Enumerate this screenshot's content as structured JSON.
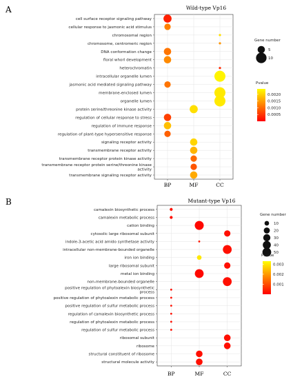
{
  "chart_data": [
    {
      "type": "scatter",
      "panel_label": "A",
      "title": "Wild-type Vp16",
      "x_categories": [
        "BP",
        "MF",
        "CC"
      ],
      "y_categories": [
        "cell surface receptor signaling pathway",
        "cellular response to jasmonic acid stimulus",
        "chromosomal region",
        "chromosome, centromeric region",
        "DNA conformation change",
        "floral whorl development",
        "heterochromatin",
        "intracellular organelle lumen",
        "jasmonic acid mediated signaling pathway",
        "membrane-enclosed lumen",
        "organelle lumen",
        "protein serine/threonine kinase activity",
        "regulation of cellular response to stress",
        "regulation of immune response",
        "regulation of plant-type hypersensitive response",
        "signaling receptor activity",
        "transmembrane receptor activity",
        "transmembrane receptor protein kinase activity",
        "transmembrane receptor protein serine/threonine kinase activity",
        "transmembrane signaling receptor activity"
      ],
      "points": [
        {
          "term": "cell surface receptor signaling pathway",
          "category": "BP",
          "gene_number": 6,
          "pvalue": 0.0003
        },
        {
          "term": "cellular response to jasmonic acid stimulus",
          "category": "BP",
          "gene_number": 4,
          "pvalue": 0.0012
        },
        {
          "term": "chromosomal region",
          "category": "CC",
          "gene_number": 2,
          "pvalue": 0.0021
        },
        {
          "term": "chromosome, centromeric region",
          "category": "CC",
          "gene_number": 2,
          "pvalue": 0.0014
        },
        {
          "term": "DNA conformation change",
          "category": "BP",
          "gene_number": 5,
          "pvalue": 0.0011
        },
        {
          "term": "floral whorl development",
          "category": "BP",
          "gene_number": 5,
          "pvalue": 0.0013
        },
        {
          "term": "heterochromatin",
          "category": "CC",
          "gene_number": 2,
          "pvalue": 0.0004
        },
        {
          "term": "intracellular organelle lumen",
          "category": "CC",
          "gene_number": 11,
          "pvalue": 0.0023
        },
        {
          "term": "jasmonic acid mediated signaling pathway",
          "category": "BP",
          "gene_number": 4,
          "pvalue": 0.0011
        },
        {
          "term": "membrane-enclosed lumen",
          "category": "CC",
          "gene_number": 11,
          "pvalue": 0.0022
        },
        {
          "term": "organelle lumen",
          "category": "CC",
          "gene_number": 11,
          "pvalue": 0.0022
        },
        {
          "term": "protein serine/threonine kinase activity",
          "category": "MF",
          "gene_number": 6,
          "pvalue": 0.0021
        },
        {
          "term": "regulation of cellular response to stress",
          "category": "BP",
          "gene_number": 5,
          "pvalue": 0.0006
        },
        {
          "term": "regulation of immune response",
          "category": "BP",
          "gene_number": 5,
          "pvalue": 0.0018
        },
        {
          "term": "regulation of plant-type hypersensitive response",
          "category": "BP",
          "gene_number": 4,
          "pvalue": 0.0009
        },
        {
          "term": "signaling receptor activity",
          "category": "MF",
          "gene_number": 5,
          "pvalue": 0.002
        },
        {
          "term": "transmembrane receptor activity",
          "category": "MF",
          "gene_number": 5,
          "pvalue": 0.0017
        },
        {
          "term": "transmembrane receptor protein kinase activity",
          "category": "MF",
          "gene_number": 4,
          "pvalue": 0.001
        },
        {
          "term": "transmembrane receptor protein serine/threonine kinase activity",
          "category": "MF",
          "gene_number": 4,
          "pvalue": 0.0008
        },
        {
          "term": "transmembrane signaling receptor activity",
          "category": "MF",
          "gene_number": 5,
          "pvalue": 0.0016
        }
      ],
      "size_legend": {
        "title": "Gene number",
        "values": [
          5,
          10
        ]
      },
      "color_legend": {
        "title": "Pvalue",
        "ticks": [
          "0.0020",
          "0.0015",
          "0.0010",
          "0.0005"
        ],
        "tick_values": [
          0.002,
          0.0015,
          0.001,
          0.0005
        ],
        "range": [
          0.0,
          0.0024
        ],
        "low_color": "#ff0000",
        "high_color": "#ffff00"
      },
      "size_domain": [
        2,
        11
      ],
      "grid": true,
      "legend_position": "right"
    },
    {
      "type": "scatter",
      "panel_label": "B",
      "title": "Mutant-type Vp16",
      "x_categories": [
        "BP",
        "MF",
        "CC"
      ],
      "y_categories": [
        "camalexin biosynthetic process",
        "camalexin metabolic process",
        "cation binding",
        "cytosolic large ribosomal subunit",
        "indole-3-acetic acid amido synthetase activity",
        "intracellular non-membrane-bounded organelle",
        "iron ion binding",
        "large ribosomal subunit",
        "metal ion binding",
        "non-membrane-bounded organelle",
        "positive regulation of phytoalexin biosynthetic process",
        "positive regulation of phytoalexin metabolic process",
        "positive regulation of sulfur metabolic process",
        "regulation of camalexin biosynthetic process",
        "regulation of phytoalexin metabolic process",
        "regulation of sulfur metabolic process",
        "ribosomal subunit",
        "ribosome",
        "structural constituent of ribosome",
        "structural molecule activity"
      ],
      "points": [
        {
          "term": "camalexin biosynthetic process",
          "category": "BP",
          "gene_number": 4,
          "pvalue": 0.0002
        },
        {
          "term": "camalexin metabolic process",
          "category": "BP",
          "gene_number": 4,
          "pvalue": 0.0002
        },
        {
          "term": "cation binding",
          "category": "MF",
          "gene_number": 52,
          "pvalue": 0.0001
        },
        {
          "term": "cytosolic large ribosomal subunit",
          "category": "CC",
          "gene_number": 22,
          "pvalue": 0.0002
        },
        {
          "term": "indole-3-acetic acid amido synthetase activity",
          "category": "MF",
          "gene_number": 3,
          "pvalue": 0.0003
        },
        {
          "term": "intracellular non-membrane-bounded organelle",
          "category": "CC",
          "gene_number": 50,
          "pvalue": 0.0002
        },
        {
          "term": "iron ion binding",
          "category": "MF",
          "gene_number": 10,
          "pvalue": 0.003
        },
        {
          "term": "large ribosomal subunit",
          "category": "CC",
          "gene_number": 22,
          "pvalue": 0.0002
        },
        {
          "term": "metal ion binding",
          "category": "MF",
          "gene_number": 50,
          "pvalue": 0.0001
        },
        {
          "term": "non-membrane-bounded organelle",
          "category": "CC",
          "gene_number": 50,
          "pvalue": 0.0002
        },
        {
          "term": "positive regulation of phytoalexin biosynthetic process",
          "category": "BP",
          "gene_number": 3,
          "pvalue": 0.0002
        },
        {
          "term": "positive regulation of phytoalexin metabolic process",
          "category": "BP",
          "gene_number": 3,
          "pvalue": 0.0002
        },
        {
          "term": "positive regulation of sulfur metabolic process",
          "category": "BP",
          "gene_number": 3,
          "pvalue": 0.0002
        },
        {
          "term": "regulation of camalexin biosynthetic process",
          "category": "BP",
          "gene_number": 3,
          "pvalue": 0.0002
        },
        {
          "term": "regulation of phytoalexin metabolic process",
          "category": "BP",
          "gene_number": 3,
          "pvalue": 0.0002
        },
        {
          "term": "regulation of sulfur metabolic process",
          "category": "BP",
          "gene_number": 3,
          "pvalue": 0.0002
        },
        {
          "term": "ribosomal subunit",
          "category": "CC",
          "gene_number": 25,
          "pvalue": 0.0002
        },
        {
          "term": "ribosome",
          "category": "CC",
          "gene_number": 25,
          "pvalue": 0.0002
        },
        {
          "term": "structural constituent of ribosome",
          "category": "MF",
          "gene_number": 25,
          "pvalue": 0.0002
        },
        {
          "term": "structural molecule activity",
          "category": "MF",
          "gene_number": 25,
          "pvalue": 0.0002
        }
      ],
      "size_legend": {
        "title": "Gene number",
        "values": [
          10,
          20,
          30,
          40,
          50
        ]
      },
      "color_legend": {
        "title": "Pvalue",
        "ticks": [
          "0.003",
          "0.002",
          "0.001"
        ],
        "tick_values": [
          0.003,
          0.002,
          0.001
        ],
        "range": [
          0.0,
          0.0033
        ],
        "low_color": "#ff0000",
        "high_color": "#ffff00"
      },
      "size_domain": [
        3,
        52
      ],
      "grid": true,
      "legend_position": "right"
    }
  ]
}
